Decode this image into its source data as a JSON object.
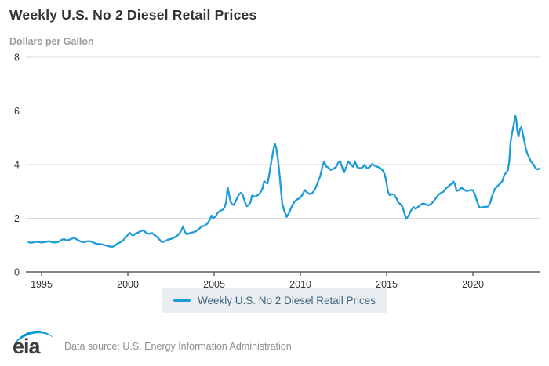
{
  "header": {
    "title": "Weekly U.S. No 2 Diesel Retail Prices"
  },
  "chart_data": {
    "type": "line",
    "title": "Weekly U.S. No 2 Diesel Retail Prices",
    "xlabel": "",
    "ylabel": "Dollars per Gallon",
    "x_ticks": [
      1995,
      2000,
      2005,
      2010,
      2015,
      2020
    ],
    "y_ticks": [
      0,
      2,
      4,
      6,
      8
    ],
    "x_range": [
      1994.09,
      2023.86
    ],
    "y_range": [
      0,
      8
    ],
    "grid": true,
    "grid_color": "#d9d9d9",
    "axis_color": "#58585a",
    "line_color": "#1d9bd8",
    "legend": {
      "position": "bottom",
      "label": "Weekly U.S. No 2 Diesel Retail Prices"
    },
    "series": [
      {
        "name": "Weekly U.S. No 2 Diesel Retail Prices",
        "points": [
          [
            1994.25,
            1.11
          ],
          [
            1994.35,
            1.09
          ],
          [
            1994.5,
            1.1
          ],
          [
            1994.65,
            1.12
          ],
          [
            1994.8,
            1.12
          ],
          [
            1994.95,
            1.1
          ],
          [
            1995.1,
            1.11
          ],
          [
            1995.25,
            1.12
          ],
          [
            1995.4,
            1.15
          ],
          [
            1995.55,
            1.12
          ],
          [
            1995.7,
            1.1
          ],
          [
            1995.85,
            1.1
          ],
          [
            1996.0,
            1.13
          ],
          [
            1996.15,
            1.19
          ],
          [
            1996.3,
            1.23
          ],
          [
            1996.45,
            1.17
          ],
          [
            1996.6,
            1.2
          ],
          [
            1996.75,
            1.24
          ],
          [
            1996.85,
            1.28
          ],
          [
            1997.0,
            1.23
          ],
          [
            1997.15,
            1.17
          ],
          [
            1997.3,
            1.13
          ],
          [
            1997.45,
            1.11
          ],
          [
            1997.6,
            1.14
          ],
          [
            1997.75,
            1.15
          ],
          [
            1997.9,
            1.13
          ],
          [
            1998.05,
            1.08
          ],
          [
            1998.2,
            1.05
          ],
          [
            1998.35,
            1.04
          ],
          [
            1998.5,
            1.03
          ],
          [
            1998.65,
            1.0
          ],
          [
            1998.8,
            0.98
          ],
          [
            1998.95,
            0.95
          ],
          [
            1999.1,
            0.94
          ],
          [
            1999.25,
            0.98
          ],
          [
            1999.4,
            1.06
          ],
          [
            1999.55,
            1.1
          ],
          [
            1999.7,
            1.16
          ],
          [
            1999.85,
            1.26
          ],
          [
            2000.0,
            1.38
          ],
          [
            2000.1,
            1.46
          ],
          [
            2000.2,
            1.4
          ],
          [
            2000.3,
            1.36
          ],
          [
            2000.45,
            1.43
          ],
          [
            2000.6,
            1.47
          ],
          [
            2000.75,
            1.52
          ],
          [
            2000.85,
            1.55
          ],
          [
            2000.95,
            1.52
          ],
          [
            2001.1,
            1.44
          ],
          [
            2001.25,
            1.42
          ],
          [
            2001.4,
            1.45
          ],
          [
            2001.55,
            1.37
          ],
          [
            2001.7,
            1.3
          ],
          [
            2001.85,
            1.2
          ],
          [
            2001.95,
            1.12
          ],
          [
            2002.1,
            1.13
          ],
          [
            2002.25,
            1.18
          ],
          [
            2002.4,
            1.22
          ],
          [
            2002.55,
            1.24
          ],
          [
            2002.7,
            1.29
          ],
          [
            2002.85,
            1.34
          ],
          [
            2003.0,
            1.44
          ],
          [
            2003.12,
            1.58
          ],
          [
            2003.2,
            1.7
          ],
          [
            2003.3,
            1.5
          ],
          [
            2003.42,
            1.4
          ],
          [
            2003.55,
            1.44
          ],
          [
            2003.7,
            1.47
          ],
          [
            2003.85,
            1.49
          ],
          [
            2004.0,
            1.54
          ],
          [
            2004.15,
            1.62
          ],
          [
            2004.3,
            1.7
          ],
          [
            2004.45,
            1.72
          ],
          [
            2004.6,
            1.8
          ],
          [
            2004.75,
            1.95
          ],
          [
            2004.85,
            2.1
          ],
          [
            2004.95,
            2.0
          ],
          [
            2005.1,
            2.08
          ],
          [
            2005.2,
            2.2
          ],
          [
            2005.35,
            2.28
          ],
          [
            2005.5,
            2.32
          ],
          [
            2005.6,
            2.4
          ],
          [
            2005.7,
            2.6
          ],
          [
            2005.78,
            3.15
          ],
          [
            2005.85,
            2.95
          ],
          [
            2005.95,
            2.62
          ],
          [
            2006.05,
            2.52
          ],
          [
            2006.15,
            2.5
          ],
          [
            2006.3,
            2.7
          ],
          [
            2006.45,
            2.9
          ],
          [
            2006.55,
            2.95
          ],
          [
            2006.65,
            2.88
          ],
          [
            2006.8,
            2.58
          ],
          [
            2006.9,
            2.45
          ],
          [
            2007.0,
            2.5
          ],
          [
            2007.1,
            2.58
          ],
          [
            2007.2,
            2.85
          ],
          [
            2007.35,
            2.8
          ],
          [
            2007.5,
            2.85
          ],
          [
            2007.65,
            2.92
          ],
          [
            2007.8,
            3.1
          ],
          [
            2007.9,
            3.38
          ],
          [
            2008.0,
            3.32
          ],
          [
            2008.1,
            3.3
          ],
          [
            2008.2,
            3.65
          ],
          [
            2008.3,
            4.05
          ],
          [
            2008.4,
            4.4
          ],
          [
            2008.48,
            4.7
          ],
          [
            2008.54,
            4.76
          ],
          [
            2008.6,
            4.62
          ],
          [
            2008.7,
            4.2
          ],
          [
            2008.78,
            3.7
          ],
          [
            2008.88,
            3.0
          ],
          [
            2008.95,
            2.55
          ],
          [
            2009.05,
            2.3
          ],
          [
            2009.2,
            2.05
          ],
          [
            2009.35,
            2.22
          ],
          [
            2009.5,
            2.45
          ],
          [
            2009.65,
            2.62
          ],
          [
            2009.8,
            2.7
          ],
          [
            2009.95,
            2.74
          ],
          [
            2010.1,
            2.86
          ],
          [
            2010.25,
            3.05
          ],
          [
            2010.4,
            2.95
          ],
          [
            2010.55,
            2.9
          ],
          [
            2010.7,
            2.95
          ],
          [
            2010.85,
            3.08
          ],
          [
            2011.0,
            3.33
          ],
          [
            2011.15,
            3.58
          ],
          [
            2011.28,
            3.94
          ],
          [
            2011.38,
            4.12
          ],
          [
            2011.5,
            3.93
          ],
          [
            2011.6,
            3.9
          ],
          [
            2011.75,
            3.8
          ],
          [
            2011.9,
            3.84
          ],
          [
            2012.05,
            3.9
          ],
          [
            2012.2,
            4.08
          ],
          [
            2012.3,
            4.13
          ],
          [
            2012.42,
            3.9
          ],
          [
            2012.52,
            3.7
          ],
          [
            2012.65,
            3.9
          ],
          [
            2012.77,
            4.12
          ],
          [
            2012.9,
            4.02
          ],
          [
            2013.05,
            3.92
          ],
          [
            2013.15,
            4.12
          ],
          [
            2013.3,
            3.9
          ],
          [
            2013.45,
            3.86
          ],
          [
            2013.6,
            3.9
          ],
          [
            2013.72,
            3.99
          ],
          [
            2013.85,
            3.86
          ],
          [
            2014.0,
            3.9
          ],
          [
            2014.15,
            4.02
          ],
          [
            2014.3,
            3.96
          ],
          [
            2014.45,
            3.92
          ],
          [
            2014.6,
            3.88
          ],
          [
            2014.75,
            3.8
          ],
          [
            2014.88,
            3.65
          ],
          [
            2014.97,
            3.4
          ],
          [
            2015.08,
            2.98
          ],
          [
            2015.18,
            2.86
          ],
          [
            2015.3,
            2.9
          ],
          [
            2015.42,
            2.88
          ],
          [
            2015.55,
            2.76
          ],
          [
            2015.68,
            2.58
          ],
          [
            2015.8,
            2.52
          ],
          [
            2015.92,
            2.42
          ],
          [
            2016.02,
            2.2
          ],
          [
            2016.12,
            1.98
          ],
          [
            2016.25,
            2.08
          ],
          [
            2016.4,
            2.28
          ],
          [
            2016.55,
            2.42
          ],
          [
            2016.68,
            2.35
          ],
          [
            2016.82,
            2.42
          ],
          [
            2016.95,
            2.5
          ],
          [
            2017.1,
            2.55
          ],
          [
            2017.25,
            2.52
          ],
          [
            2017.4,
            2.48
          ],
          [
            2017.55,
            2.52
          ],
          [
            2017.7,
            2.62
          ],
          [
            2017.85,
            2.75
          ],
          [
            2018.0,
            2.88
          ],
          [
            2018.15,
            2.95
          ],
          [
            2018.3,
            3.0
          ],
          [
            2018.45,
            3.12
          ],
          [
            2018.6,
            3.2
          ],
          [
            2018.75,
            3.28
          ],
          [
            2018.85,
            3.38
          ],
          [
            2018.95,
            3.28
          ],
          [
            2019.05,
            3.02
          ],
          [
            2019.2,
            3.05
          ],
          [
            2019.32,
            3.14
          ],
          [
            2019.45,
            3.08
          ],
          [
            2019.6,
            3.02
          ],
          [
            2019.75,
            3.03
          ],
          [
            2019.9,
            3.06
          ],
          [
            2020.0,
            3.04
          ],
          [
            2020.12,
            2.88
          ],
          [
            2020.25,
            2.6
          ],
          [
            2020.38,
            2.4
          ],
          [
            2020.5,
            2.4
          ],
          [
            2020.62,
            2.43
          ],
          [
            2020.75,
            2.42
          ],
          [
            2020.88,
            2.44
          ],
          [
            2021.0,
            2.58
          ],
          [
            2021.12,
            2.85
          ],
          [
            2021.25,
            3.08
          ],
          [
            2021.4,
            3.18
          ],
          [
            2021.55,
            3.28
          ],
          [
            2021.7,
            3.38
          ],
          [
            2021.82,
            3.62
          ],
          [
            2021.95,
            3.72
          ],
          [
            2022.02,
            3.78
          ],
          [
            2022.1,
            4.1
          ],
          [
            2022.18,
            4.85
          ],
          [
            2022.25,
            5.12
          ],
          [
            2022.32,
            5.35
          ],
          [
            2022.4,
            5.62
          ],
          [
            2022.46,
            5.81
          ],
          [
            2022.52,
            5.6
          ],
          [
            2022.58,
            5.22
          ],
          [
            2022.64,
            5.05
          ],
          [
            2022.72,
            5.32
          ],
          [
            2022.8,
            5.4
          ],
          [
            2022.88,
            5.18
          ],
          [
            2022.95,
            4.95
          ],
          [
            2023.05,
            4.62
          ],
          [
            2023.15,
            4.4
          ],
          [
            2023.25,
            4.28
          ],
          [
            2023.35,
            4.12
          ],
          [
            2023.45,
            4.05
          ],
          [
            2023.55,
            3.95
          ],
          [
            2023.65,
            3.85
          ],
          [
            2023.75,
            3.82
          ],
          [
            2023.85,
            3.86
          ]
        ]
      }
    ]
  },
  "footer": {
    "logo_text": "eia",
    "logo_color": "#0096d7",
    "data_source": "Data source: U.S. Energy Information Administration"
  }
}
